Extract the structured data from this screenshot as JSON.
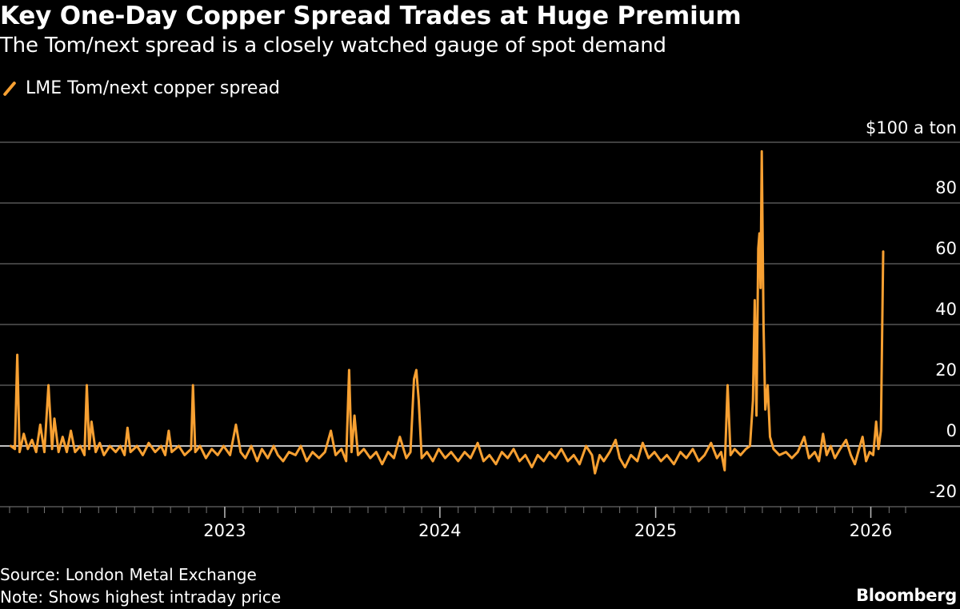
{
  "header": {
    "title": "Key One-Day Copper Spread Trades at Huge Premium",
    "subtitle": "The Tom/next spread is a closely watched gauge of spot demand"
  },
  "footer": {
    "source": "Source: London Metal Exchange",
    "note": "Note: Shows highest intraday price",
    "brand": "Bloomberg"
  },
  "colors": {
    "background": "#000000",
    "series": "#f7a032",
    "grid": "#555555",
    "zero_line": "#ffffff",
    "text": "#ffffff"
  },
  "chart_data": {
    "type": "line",
    "title": "Key One-Day Copper Spread Trades at Huge Premium",
    "subtitle": "The Tom/next spread is a closely watched gauge of spot demand",
    "ylabel": "$100 a ton",
    "y_unit_label": "$100 a ton",
    "ylim": [
      -20,
      100
    ],
    "y_ticks": [
      80,
      60,
      40,
      20,
      0,
      -20
    ],
    "y_tick_labels": [
      "80",
      "60",
      "40",
      "20",
      "0",
      "-20"
    ],
    "xlim": [
      "2022-01-01",
      "2026-03-01"
    ],
    "x_ticks": [
      "2023-01-01",
      "2024-01-01",
      "2025-01-01",
      "2026-01-01"
    ],
    "x_tick_labels": [
      "2023",
      "2024",
      "2025",
      "2026"
    ],
    "grid": true,
    "legend_position": "top-left",
    "series": [
      {
        "name": "LME Tom/next copper spread",
        "color": "#f7a032",
        "points": [
          [
            "2022-01-03",
            0
          ],
          [
            "2022-01-10",
            -1
          ],
          [
            "2022-01-14",
            30
          ],
          [
            "2022-01-18",
            -2
          ],
          [
            "2022-01-25",
            4
          ],
          [
            "2022-02-01",
            -1
          ],
          [
            "2022-02-08",
            2
          ],
          [
            "2022-02-15",
            -2
          ],
          [
            "2022-02-22",
            7
          ],
          [
            "2022-03-01",
            -2
          ],
          [
            "2022-03-08",
            20
          ],
          [
            "2022-03-14",
            -1
          ],
          [
            "2022-03-18",
            9
          ],
          [
            "2022-03-25",
            -2
          ],
          [
            "2022-04-01",
            3
          ],
          [
            "2022-04-08",
            -2
          ],
          [
            "2022-04-15",
            5
          ],
          [
            "2022-04-22",
            -2
          ],
          [
            "2022-05-01",
            0
          ],
          [
            "2022-05-08",
            -3
          ],
          [
            "2022-05-12",
            20
          ],
          [
            "2022-05-16",
            -1
          ],
          [
            "2022-05-20",
            8
          ],
          [
            "2022-05-27",
            -2
          ],
          [
            "2022-06-03",
            1
          ],
          [
            "2022-06-10",
            -3
          ],
          [
            "2022-06-20",
            0
          ],
          [
            "2022-06-30",
            -2
          ],
          [
            "2022-07-08",
            0
          ],
          [
            "2022-07-15",
            -3
          ],
          [
            "2022-07-20",
            6
          ],
          [
            "2022-07-25",
            -2
          ],
          [
            "2022-08-05",
            0
          ],
          [
            "2022-08-15",
            -3
          ],
          [
            "2022-08-25",
            1
          ],
          [
            "2022-09-05",
            -2
          ],
          [
            "2022-09-15",
            0
          ],
          [
            "2022-09-22",
            -3
          ],
          [
            "2022-09-28",
            5
          ],
          [
            "2022-10-03",
            -2
          ],
          [
            "2022-10-15",
            0
          ],
          [
            "2022-10-25",
            -3
          ],
          [
            "2022-11-05",
            -1
          ],
          [
            "2022-11-08",
            20
          ],
          [
            "2022-11-12",
            -2
          ],
          [
            "2022-11-20",
            0
          ],
          [
            "2022-11-30",
            -4
          ],
          [
            "2022-12-10",
            -1
          ],
          [
            "2022-12-20",
            -3
          ],
          [
            "2022-12-30",
            0
          ],
          [
            "2023-01-10",
            -3
          ],
          [
            "2023-01-20",
            7
          ],
          [
            "2023-01-28",
            -2
          ],
          [
            "2023-02-05",
            -4
          ],
          [
            "2023-02-15",
            0
          ],
          [
            "2023-02-25",
            -5
          ],
          [
            "2023-03-05",
            -1
          ],
          [
            "2023-03-15",
            -4
          ],
          [
            "2023-03-25",
            0
          ],
          [
            "2023-04-01",
            -3
          ],
          [
            "2023-04-10",
            -5
          ],
          [
            "2023-04-20",
            -2
          ],
          [
            "2023-05-01",
            -3
          ],
          [
            "2023-05-10",
            0
          ],
          [
            "2023-05-20",
            -5
          ],
          [
            "2023-05-30",
            -2
          ],
          [
            "2023-06-10",
            -4
          ],
          [
            "2023-06-20",
            -2
          ],
          [
            "2023-06-30",
            5
          ],
          [
            "2023-07-08",
            -3
          ],
          [
            "2023-07-18",
            -1
          ],
          [
            "2023-07-26",
            -5
          ],
          [
            "2023-07-31",
            25
          ],
          [
            "2023-08-04",
            -2
          ],
          [
            "2023-08-09",
            10
          ],
          [
            "2023-08-15",
            -3
          ],
          [
            "2023-08-25",
            -1
          ],
          [
            "2023-09-05",
            -4
          ],
          [
            "2023-09-15",
            -2
          ],
          [
            "2023-09-25",
            -6
          ],
          [
            "2023-10-05",
            -2
          ],
          [
            "2023-10-15",
            -4
          ],
          [
            "2023-10-25",
            3
          ],
          [
            "2023-11-05",
            -4
          ],
          [
            "2023-11-12",
            -2
          ],
          [
            "2023-11-18",
            22
          ],
          [
            "2023-11-22",
            25
          ],
          [
            "2023-11-26",
            15
          ],
          [
            "2023-12-01",
            -4
          ],
          [
            "2023-12-10",
            -2
          ],
          [
            "2023-12-20",
            -5
          ],
          [
            "2023-12-30",
            -1
          ],
          [
            "2024-01-10",
            -4
          ],
          [
            "2024-01-20",
            -2
          ],
          [
            "2024-02-01",
            -5
          ],
          [
            "2024-02-12",
            -2
          ],
          [
            "2024-02-22",
            -4
          ],
          [
            "2024-03-05",
            1
          ],
          [
            "2024-03-15",
            -5
          ],
          [
            "2024-03-25",
            -3
          ],
          [
            "2024-04-05",
            -6
          ],
          [
            "2024-04-15",
            -2
          ],
          [
            "2024-04-25",
            -4
          ],
          [
            "2024-05-05",
            -1
          ],
          [
            "2024-05-15",
            -5
          ],
          [
            "2024-05-25",
            -3
          ],
          [
            "2024-06-05",
            -7
          ],
          [
            "2024-06-15",
            -3
          ],
          [
            "2024-06-25",
            -5
          ],
          [
            "2024-07-05",
            -2
          ],
          [
            "2024-07-15",
            -4
          ],
          [
            "2024-07-25",
            -1
          ],
          [
            "2024-08-05",
            -5
          ],
          [
            "2024-08-15",
            -3
          ],
          [
            "2024-08-25",
            -6
          ],
          [
            "2024-09-05",
            0
          ],
          [
            "2024-09-15",
            -3
          ],
          [
            "2024-09-20",
            -9
          ],
          [
            "2024-09-28",
            -3
          ],
          [
            "2024-10-05",
            -5
          ],
          [
            "2024-10-15",
            -2
          ],
          [
            "2024-10-25",
            2
          ],
          [
            "2024-11-01",
            -4
          ],
          [
            "2024-11-10",
            -7
          ],
          [
            "2024-11-20",
            -3
          ],
          [
            "2024-12-01",
            -5
          ],
          [
            "2024-12-10",
            1
          ],
          [
            "2024-12-20",
            -4
          ],
          [
            "2024-12-30",
            -2
          ],
          [
            "2025-01-10",
            -5
          ],
          [
            "2025-01-20",
            -3
          ],
          [
            "2025-02-01",
            -6
          ],
          [
            "2025-02-12",
            -2
          ],
          [
            "2025-02-22",
            -4
          ],
          [
            "2025-03-05",
            -1
          ],
          [
            "2025-03-15",
            -5
          ],
          [
            "2025-03-25",
            -3
          ],
          [
            "2025-04-05",
            1
          ],
          [
            "2025-04-15",
            -4
          ],
          [
            "2025-04-22",
            -2
          ],
          [
            "2025-04-28",
            -8
          ],
          [
            "2025-05-03",
            20
          ],
          [
            "2025-05-08",
            -3
          ],
          [
            "2025-05-15",
            -1
          ],
          [
            "2025-05-25",
            -3
          ],
          [
            "2025-06-03",
            -1
          ],
          [
            "2025-06-10",
            0
          ],
          [
            "2025-06-15",
            15
          ],
          [
            "2025-06-18",
            48
          ],
          [
            "2025-06-21",
            10
          ],
          [
            "2025-06-24",
            65
          ],
          [
            "2025-06-26",
            70
          ],
          [
            "2025-06-28",
            52
          ],
          [
            "2025-06-30",
            97
          ],
          [
            "2025-07-03",
            40
          ],
          [
            "2025-07-06",
            12
          ],
          [
            "2025-07-10",
            20
          ],
          [
            "2025-07-14",
            3
          ],
          [
            "2025-07-20",
            -1
          ],
          [
            "2025-07-30",
            -3
          ],
          [
            "2025-08-10",
            -2
          ],
          [
            "2025-08-20",
            -4
          ],
          [
            "2025-08-30",
            -2
          ],
          [
            "2025-09-10",
            3
          ],
          [
            "2025-09-18",
            -4
          ],
          [
            "2025-09-28",
            -2
          ],
          [
            "2025-10-05",
            -5
          ],
          [
            "2025-10-12",
            4
          ],
          [
            "2025-10-18",
            -3
          ],
          [
            "2025-10-25",
            0
          ],
          [
            "2025-11-01",
            -4
          ],
          [
            "2025-11-10",
            -1
          ],
          [
            "2025-11-20",
            2
          ],
          [
            "2025-11-28",
            -3
          ],
          [
            "2025-12-05",
            -6
          ],
          [
            "2025-12-12",
            -1
          ],
          [
            "2025-12-18",
            3
          ],
          [
            "2025-12-24",
            -5
          ],
          [
            "2025-12-30",
            -2
          ],
          [
            "2026-01-05",
            -3
          ],
          [
            "2026-01-10",
            8
          ],
          [
            "2026-01-14",
            -1
          ],
          [
            "2026-01-18",
            5
          ],
          [
            "2026-01-22",
            64
          ]
        ]
      }
    ]
  }
}
